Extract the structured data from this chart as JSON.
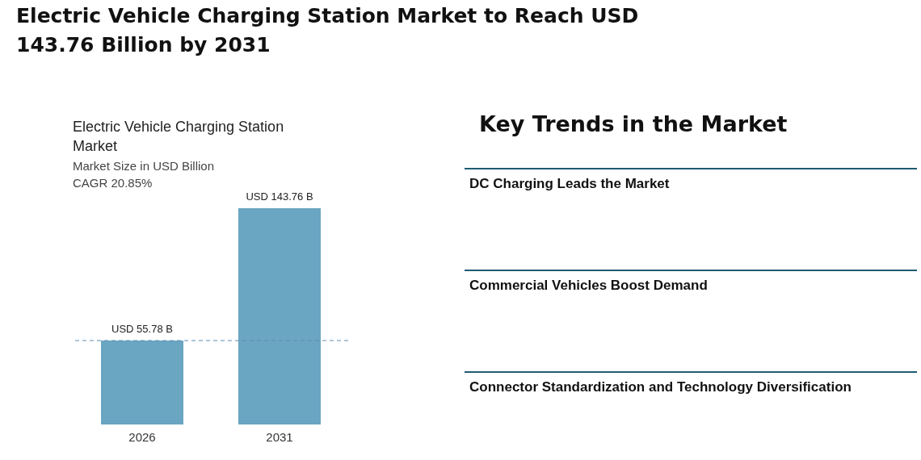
{
  "chart_data": [
    {
      "type": "bar",
      "title": "Electric Vehicle Charging Station Market to Reach USD 143.76 Billion by 2031",
      "subtitle": "Electric Vehicle Charging Station Market",
      "annotations": [
        "Market Size in USD Billion",
        "CAGR 20.85%"
      ],
      "categories": [
        "2026",
        "2031"
      ],
      "values": [
        55.78,
        143.76
      ],
      "value_labels": [
        "USD 55.78 B",
        "USD 143.76 B"
      ],
      "color": "#6aa5c1",
      "ref_lines": [
        {
          "axis": "y",
          "value": 55.78,
          "color": "#5b8db5",
          "line_style": "dashed"
        }
      ]
    },
    {
      "type": "other",
      "title": "Key Trends in the Market",
      "annotations": [
        "DC Charging Leads the Market",
        "Commercial Vehicles Boost Demand",
        "Connector Standardization and Technology Diversification"
      ]
    }
  ]
}
